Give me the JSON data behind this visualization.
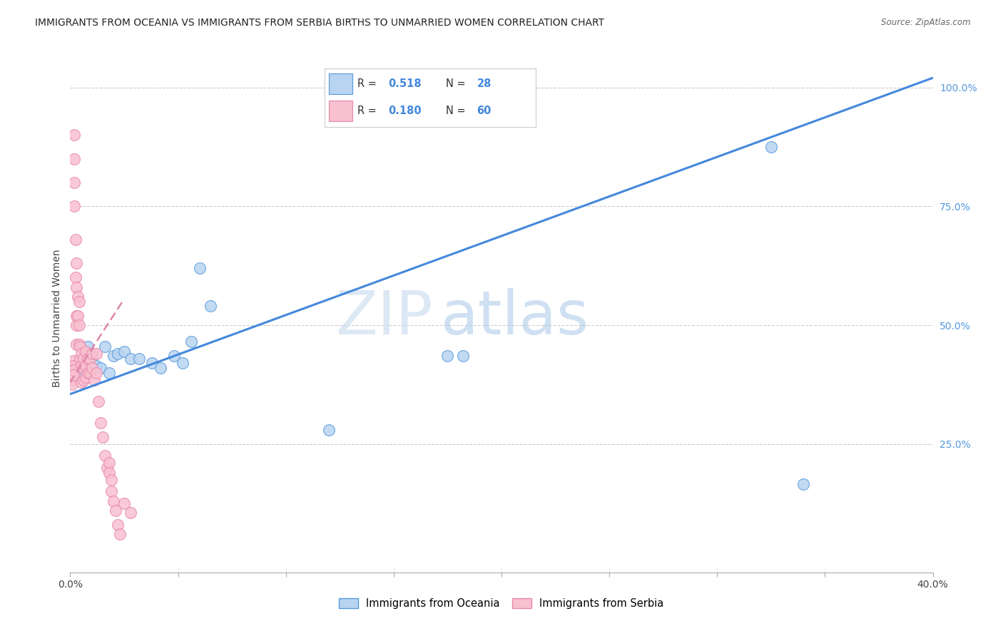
{
  "title": "IMMIGRANTS FROM OCEANIA VS IMMIGRANTS FROM SERBIA BIRTHS TO UNMARRIED WOMEN CORRELATION CHART",
  "source": "Source: ZipAtlas.com",
  "ylabel": "Births to Unmarried Women",
  "xlim": [
    0.0,
    0.4
  ],
  "ylim": [
    -0.02,
    1.05
  ],
  "xtick_vals": [
    0.0,
    0.05,
    0.1,
    0.15,
    0.2,
    0.25,
    0.3,
    0.35,
    0.4
  ],
  "xtick_show_labels": [
    0.0,
    0.4
  ],
  "ytick_vals_right": [
    0.25,
    0.5,
    0.75,
    1.0
  ],
  "ytick_labels_right": [
    "25.0%",
    "50.0%",
    "75.0%",
    "100.0%"
  ],
  "watermark_zip": "ZIP",
  "watermark_atlas": "atlas",
  "blue_face": "#b8d4f0",
  "blue_edge": "#5599dd",
  "pink_face": "#f8c0d0",
  "pink_edge": "#e888aa",
  "blue_line": "#4488dd",
  "pink_line": "#dd88aa",
  "legend_blue_r": "0.518",
  "legend_blue_n": "28",
  "legend_pink_r": "0.180",
  "legend_pink_n": "60",
  "oceania_x": [
    0.004,
    0.004,
    0.005,
    0.006,
    0.008,
    0.008,
    0.01,
    0.012,
    0.014,
    0.016,
    0.018,
    0.02,
    0.022,
    0.025,
    0.028,
    0.032,
    0.038,
    0.042,
    0.048,
    0.052,
    0.056,
    0.06,
    0.065,
    0.12,
    0.175,
    0.182,
    0.325,
    0.34
  ],
  "oceania_y": [
    0.415,
    0.4,
    0.395,
    0.41,
    0.455,
    0.44,
    0.435,
    0.415,
    0.41,
    0.455,
    0.4,
    0.435,
    0.44,
    0.445,
    0.43,
    0.43,
    0.42,
    0.41,
    0.435,
    0.42,
    0.465,
    0.62,
    0.54,
    0.28,
    0.435,
    0.435,
    0.875,
    0.165
  ],
  "serbia_x": [
    0.001,
    0.001,
    0.001,
    0.001,
    0.001,
    0.0015,
    0.0015,
    0.0015,
    0.0015,
    0.002,
    0.002,
    0.002,
    0.002,
    0.0025,
    0.0025,
    0.003,
    0.003,
    0.003,
    0.003,
    0.003,
    0.0035,
    0.0035,
    0.004,
    0.004,
    0.004,
    0.0045,
    0.0045,
    0.005,
    0.005,
    0.005,
    0.006,
    0.006,
    0.006,
    0.007,
    0.007,
    0.007,
    0.008,
    0.008,
    0.009,
    0.009,
    0.01,
    0.01,
    0.011,
    0.012,
    0.012,
    0.013,
    0.014,
    0.015,
    0.016,
    0.017,
    0.018,
    0.018,
    0.019,
    0.019,
    0.02,
    0.021,
    0.022,
    0.023,
    0.025,
    0.028
  ],
  "serbia_y": [
    0.415,
    0.4,
    0.395,
    0.385,
    0.375,
    0.425,
    0.415,
    0.405,
    0.395,
    0.9,
    0.85,
    0.8,
    0.75,
    0.68,
    0.6,
    0.63,
    0.58,
    0.52,
    0.5,
    0.46,
    0.56,
    0.52,
    0.55,
    0.5,
    0.46,
    0.455,
    0.43,
    0.44,
    0.415,
    0.38,
    0.43,
    0.41,
    0.385,
    0.445,
    0.415,
    0.39,
    0.43,
    0.4,
    0.43,
    0.4,
    0.44,
    0.41,
    0.385,
    0.44,
    0.4,
    0.34,
    0.295,
    0.265,
    0.225,
    0.2,
    0.21,
    0.19,
    0.175,
    0.15,
    0.13,
    0.11,
    0.08,
    0.06,
    0.125,
    0.105
  ],
  "blue_trendline_x": [
    0.0,
    0.4
  ],
  "blue_trendline_y": [
    0.355,
    1.02
  ],
  "pink_trendline_x": [
    0.0,
    0.025
  ],
  "pink_trendline_y": [
    0.38,
    0.555
  ]
}
